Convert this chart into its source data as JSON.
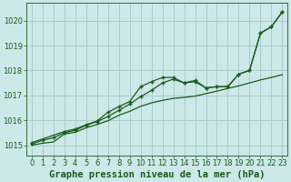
{
  "title": "Graphe pression niveau de la mer (hPa)",
  "bg_color": "#cce8e8",
  "grid_color": "#aacccc",
  "line_color": "#1a5c1a",
  "xlim": [
    -0.5,
    23.5
  ],
  "ylim": [
    1014.6,
    1020.7
  ],
  "yticks": [
    1015,
    1016,
    1017,
    1018,
    1019,
    1020
  ],
  "xticks": [
    0,
    1,
    2,
    3,
    4,
    5,
    6,
    7,
    8,
    9,
    10,
    11,
    12,
    13,
    14,
    15,
    16,
    17,
    18,
    19,
    20,
    21,
    22,
    23
  ],
  "line1_x": [
    0,
    1,
    2,
    3,
    4,
    5,
    6,
    7,
    8,
    9,
    10,
    11,
    12,
    13,
    14,
    15,
    16,
    17,
    18,
    19,
    20,
    21,
    22,
    23
  ],
  "line1_y": [
    1015.05,
    1015.2,
    1015.3,
    1015.5,
    1015.6,
    1015.8,
    1015.95,
    1016.15,
    1016.4,
    1016.65,
    1016.95,
    1017.2,
    1017.5,
    1017.65,
    1017.5,
    1017.6,
    1017.3,
    1017.35,
    1017.35,
    1017.85,
    1018.0,
    1019.5,
    1019.75,
    1020.35
  ],
  "line2_x": [
    0,
    3,
    4,
    5,
    6,
    7,
    8,
    9,
    10,
    11,
    12,
    13,
    14,
    15,
    16,
    17,
    18,
    19,
    20,
    21,
    22,
    23
  ],
  "line2_y": [
    1015.1,
    1015.55,
    1015.65,
    1015.82,
    1015.97,
    1016.32,
    1016.55,
    1016.75,
    1017.35,
    1017.55,
    1017.72,
    1017.72,
    1017.5,
    1017.55,
    1017.3,
    1017.35,
    1017.35,
    1017.85,
    1018.0,
    1019.5,
    1019.75,
    1020.35
  ],
  "line3_x": [
    0,
    1,
    2,
    3,
    4,
    5,
    6,
    7,
    8,
    9,
    10,
    11,
    12,
    13,
    14,
    15,
    16,
    17,
    18,
    19,
    20,
    21,
    22,
    23
  ],
  "line3_y": [
    1015.0,
    1015.08,
    1015.13,
    1015.45,
    1015.52,
    1015.7,
    1015.83,
    1015.98,
    1016.2,
    1016.36,
    1016.56,
    1016.7,
    1016.8,
    1016.88,
    1016.92,
    1016.97,
    1017.07,
    1017.17,
    1017.28,
    1017.38,
    1017.5,
    1017.62,
    1017.72,
    1017.83
  ],
  "title_fontsize": 7.5,
  "tick_fontsize": 6.0,
  "ylabel_fontsize": 6.0
}
